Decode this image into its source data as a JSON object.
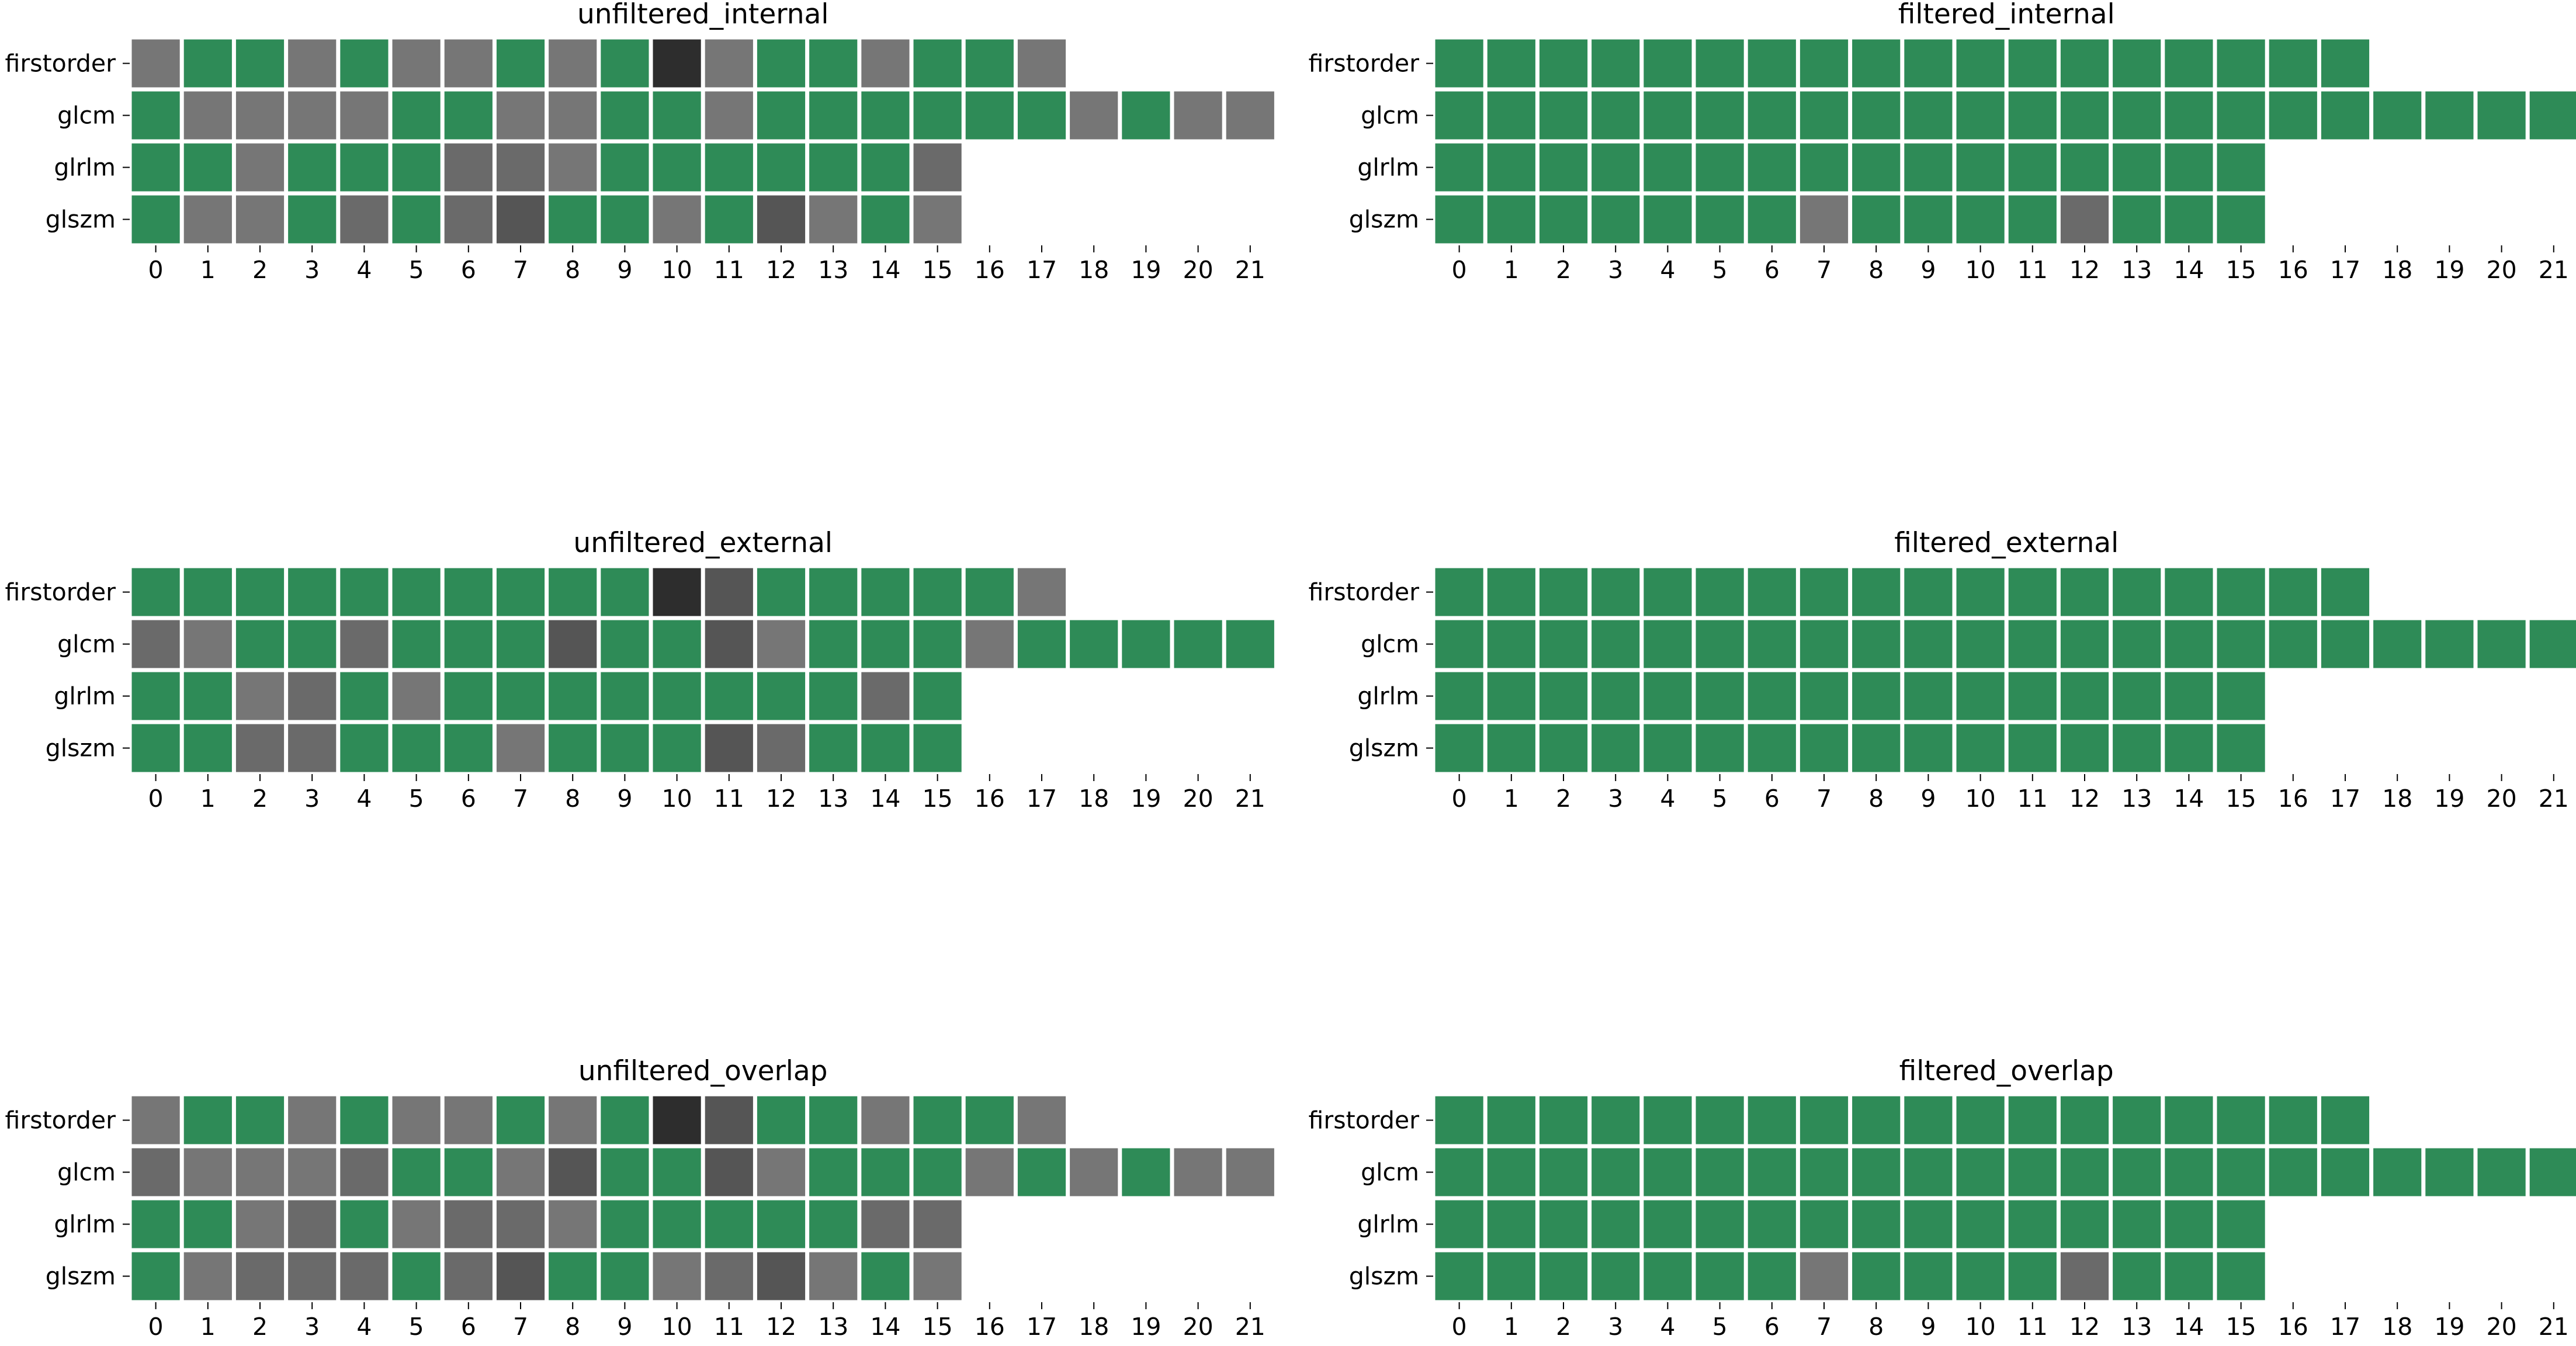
{
  "chart_data": [
    {
      "type": "heatmap",
      "title": "unfiltered_internal",
      "rows": [
        "firstorder",
        "glcm",
        "glrlm",
        "glszm"
      ],
      "columns": [
        "0",
        "1",
        "2",
        "3",
        "4",
        "5",
        "6",
        "7",
        "8",
        "9",
        "10",
        "11",
        "12",
        "13",
        "14",
        "15",
        "16",
        "17",
        "18",
        "19",
        "20",
        "21"
      ],
      "values": [
        [
          "m",
          "g",
          "g",
          "m",
          "g",
          "m",
          "m",
          "g",
          "m",
          "g",
          "k",
          "m",
          "g",
          "g",
          "m",
          "g",
          "g",
          "m"
        ],
        [
          "g",
          "m",
          "m",
          "m",
          "m",
          "g",
          "g",
          "m",
          "m",
          "g",
          "g",
          "m",
          "g",
          "g",
          "g",
          "g",
          "g",
          "g",
          "m",
          "g",
          "m",
          "m"
        ],
        [
          "g",
          "g",
          "m",
          "g",
          "g",
          "g",
          "d",
          "d",
          "m",
          "g",
          "g",
          "g",
          "g",
          "g",
          "g",
          "d"
        ],
        [
          "g",
          "m",
          "m",
          "g",
          "d",
          "g",
          "d",
          "e",
          "g",
          "g",
          "m",
          "g",
          "e",
          "m",
          "g",
          "m"
        ]
      ]
    },
    {
      "type": "heatmap",
      "title": "filtered_internal",
      "rows": [
        "firstorder",
        "glcm",
        "glrlm",
        "glszm"
      ],
      "columns": [
        "0",
        "1",
        "2",
        "3",
        "4",
        "5",
        "6",
        "7",
        "8",
        "9",
        "10",
        "11",
        "12",
        "13",
        "14",
        "15",
        "16",
        "17",
        "18",
        "19",
        "20",
        "21"
      ],
      "values": [
        [
          "g",
          "g",
          "g",
          "g",
          "g",
          "g",
          "g",
          "g",
          "g",
          "g",
          "g",
          "g",
          "g",
          "g",
          "g",
          "g",
          "g",
          "g"
        ],
        [
          "g",
          "g",
          "g",
          "g",
          "g",
          "g",
          "g",
          "g",
          "g",
          "g",
          "g",
          "g",
          "g",
          "g",
          "g",
          "g",
          "g",
          "g",
          "g",
          "g",
          "g",
          "g"
        ],
        [
          "g",
          "g",
          "g",
          "g",
          "g",
          "g",
          "g",
          "g",
          "g",
          "g",
          "g",
          "g",
          "g",
          "g",
          "g",
          "g"
        ],
        [
          "g",
          "g",
          "g",
          "g",
          "g",
          "g",
          "g",
          "m",
          "g",
          "g",
          "g",
          "g",
          "d",
          "g",
          "g",
          "g"
        ]
      ]
    },
    {
      "type": "heatmap",
      "title": "unfiltered_external",
      "rows": [
        "firstorder",
        "glcm",
        "glrlm",
        "glszm"
      ],
      "columns": [
        "0",
        "1",
        "2",
        "3",
        "4",
        "5",
        "6",
        "7",
        "8",
        "9",
        "10",
        "11",
        "12",
        "13",
        "14",
        "15",
        "16",
        "17",
        "18",
        "19",
        "20",
        "21"
      ],
      "values": [
        [
          "g",
          "g",
          "g",
          "g",
          "g",
          "g",
          "g",
          "g",
          "g",
          "g",
          "k",
          "e",
          "g",
          "g",
          "g",
          "g",
          "g",
          "m"
        ],
        [
          "d",
          "m",
          "g",
          "g",
          "d",
          "g",
          "g",
          "g",
          "e",
          "g",
          "g",
          "e",
          "m",
          "g",
          "g",
          "g",
          "m",
          "g",
          "g",
          "g",
          "g",
          "g"
        ],
        [
          "g",
          "g",
          "m",
          "d",
          "g",
          "m",
          "g",
          "g",
          "g",
          "g",
          "g",
          "g",
          "g",
          "g",
          "d",
          "g"
        ],
        [
          "g",
          "g",
          "d",
          "d",
          "g",
          "g",
          "g",
          "m",
          "g",
          "g",
          "g",
          "e",
          "d",
          "g",
          "g",
          "g"
        ]
      ]
    },
    {
      "type": "heatmap",
      "title": "filtered_external",
      "rows": [
        "firstorder",
        "glcm",
        "glrlm",
        "glszm"
      ],
      "columns": [
        "0",
        "1",
        "2",
        "3",
        "4",
        "5",
        "6",
        "7",
        "8",
        "9",
        "10",
        "11",
        "12",
        "13",
        "14",
        "15",
        "16",
        "17",
        "18",
        "19",
        "20",
        "21"
      ],
      "values": [
        [
          "g",
          "g",
          "g",
          "g",
          "g",
          "g",
          "g",
          "g",
          "g",
          "g",
          "g",
          "g",
          "g",
          "g",
          "g",
          "g",
          "g",
          "g"
        ],
        [
          "g",
          "g",
          "g",
          "g",
          "g",
          "g",
          "g",
          "g",
          "g",
          "g",
          "g",
          "g",
          "g",
          "g",
          "g",
          "g",
          "g",
          "g",
          "g",
          "g",
          "g",
          "g"
        ],
        [
          "g",
          "g",
          "g",
          "g",
          "g",
          "g",
          "g",
          "g",
          "g",
          "g",
          "g",
          "g",
          "g",
          "g",
          "g",
          "g"
        ],
        [
          "g",
          "g",
          "g",
          "g",
          "g",
          "g",
          "g",
          "g",
          "g",
          "g",
          "g",
          "g",
          "g",
          "g",
          "g",
          "g"
        ]
      ]
    },
    {
      "type": "heatmap",
      "title": "unfiltered_overlap",
      "rows": [
        "firstorder",
        "glcm",
        "glrlm",
        "glszm"
      ],
      "columns": [
        "0",
        "1",
        "2",
        "3",
        "4",
        "5",
        "6",
        "7",
        "8",
        "9",
        "10",
        "11",
        "12",
        "13",
        "14",
        "15",
        "16",
        "17",
        "18",
        "19",
        "20",
        "21"
      ],
      "values": [
        [
          "m",
          "g",
          "g",
          "m",
          "g",
          "m",
          "m",
          "g",
          "m",
          "g",
          "k",
          "e",
          "g",
          "g",
          "m",
          "g",
          "g",
          "m"
        ],
        [
          "d",
          "m",
          "m",
          "m",
          "d",
          "g",
          "g",
          "m",
          "e",
          "g",
          "g",
          "e",
          "m",
          "g",
          "g",
          "g",
          "m",
          "g",
          "m",
          "g",
          "m",
          "m"
        ],
        [
          "g",
          "g",
          "m",
          "d",
          "g",
          "m",
          "d",
          "d",
          "m",
          "g",
          "g",
          "g",
          "g",
          "g",
          "d",
          "d"
        ],
        [
          "g",
          "m",
          "d",
          "d",
          "d",
          "g",
          "d",
          "e",
          "g",
          "g",
          "m",
          "d",
          "e",
          "m",
          "g",
          "m"
        ]
      ]
    },
    {
      "type": "heatmap",
      "title": "filtered_overlap",
      "rows": [
        "firstorder",
        "glcm",
        "glrlm",
        "glszm"
      ],
      "columns": [
        "0",
        "1",
        "2",
        "3",
        "4",
        "5",
        "6",
        "7",
        "8",
        "9",
        "10",
        "11",
        "12",
        "13",
        "14",
        "15",
        "16",
        "17",
        "18",
        "19",
        "20",
        "21"
      ],
      "values": [
        [
          "g",
          "g",
          "g",
          "g",
          "g",
          "g",
          "g",
          "g",
          "g",
          "g",
          "g",
          "g",
          "g",
          "g",
          "g",
          "g",
          "g",
          "g"
        ],
        [
          "g",
          "g",
          "g",
          "g",
          "g",
          "g",
          "g",
          "g",
          "g",
          "g",
          "g",
          "g",
          "g",
          "g",
          "g",
          "g",
          "g",
          "g",
          "g",
          "g",
          "g",
          "g"
        ],
        [
          "g",
          "g",
          "g",
          "g",
          "g",
          "g",
          "g",
          "g",
          "g",
          "g",
          "g",
          "g",
          "g",
          "g",
          "g",
          "g"
        ],
        [
          "g",
          "g",
          "g",
          "g",
          "g",
          "g",
          "g",
          "m",
          "g",
          "g",
          "g",
          "g",
          "d",
          "g",
          "g",
          "g"
        ]
      ]
    }
  ],
  "colors": {
    "g": "#2e8b57",
    "m": "#767676",
    "d": "#6a6a6a",
    "e": "#555555",
    "k": "#2d2d2d",
    "grid": "#ffffff"
  }
}
